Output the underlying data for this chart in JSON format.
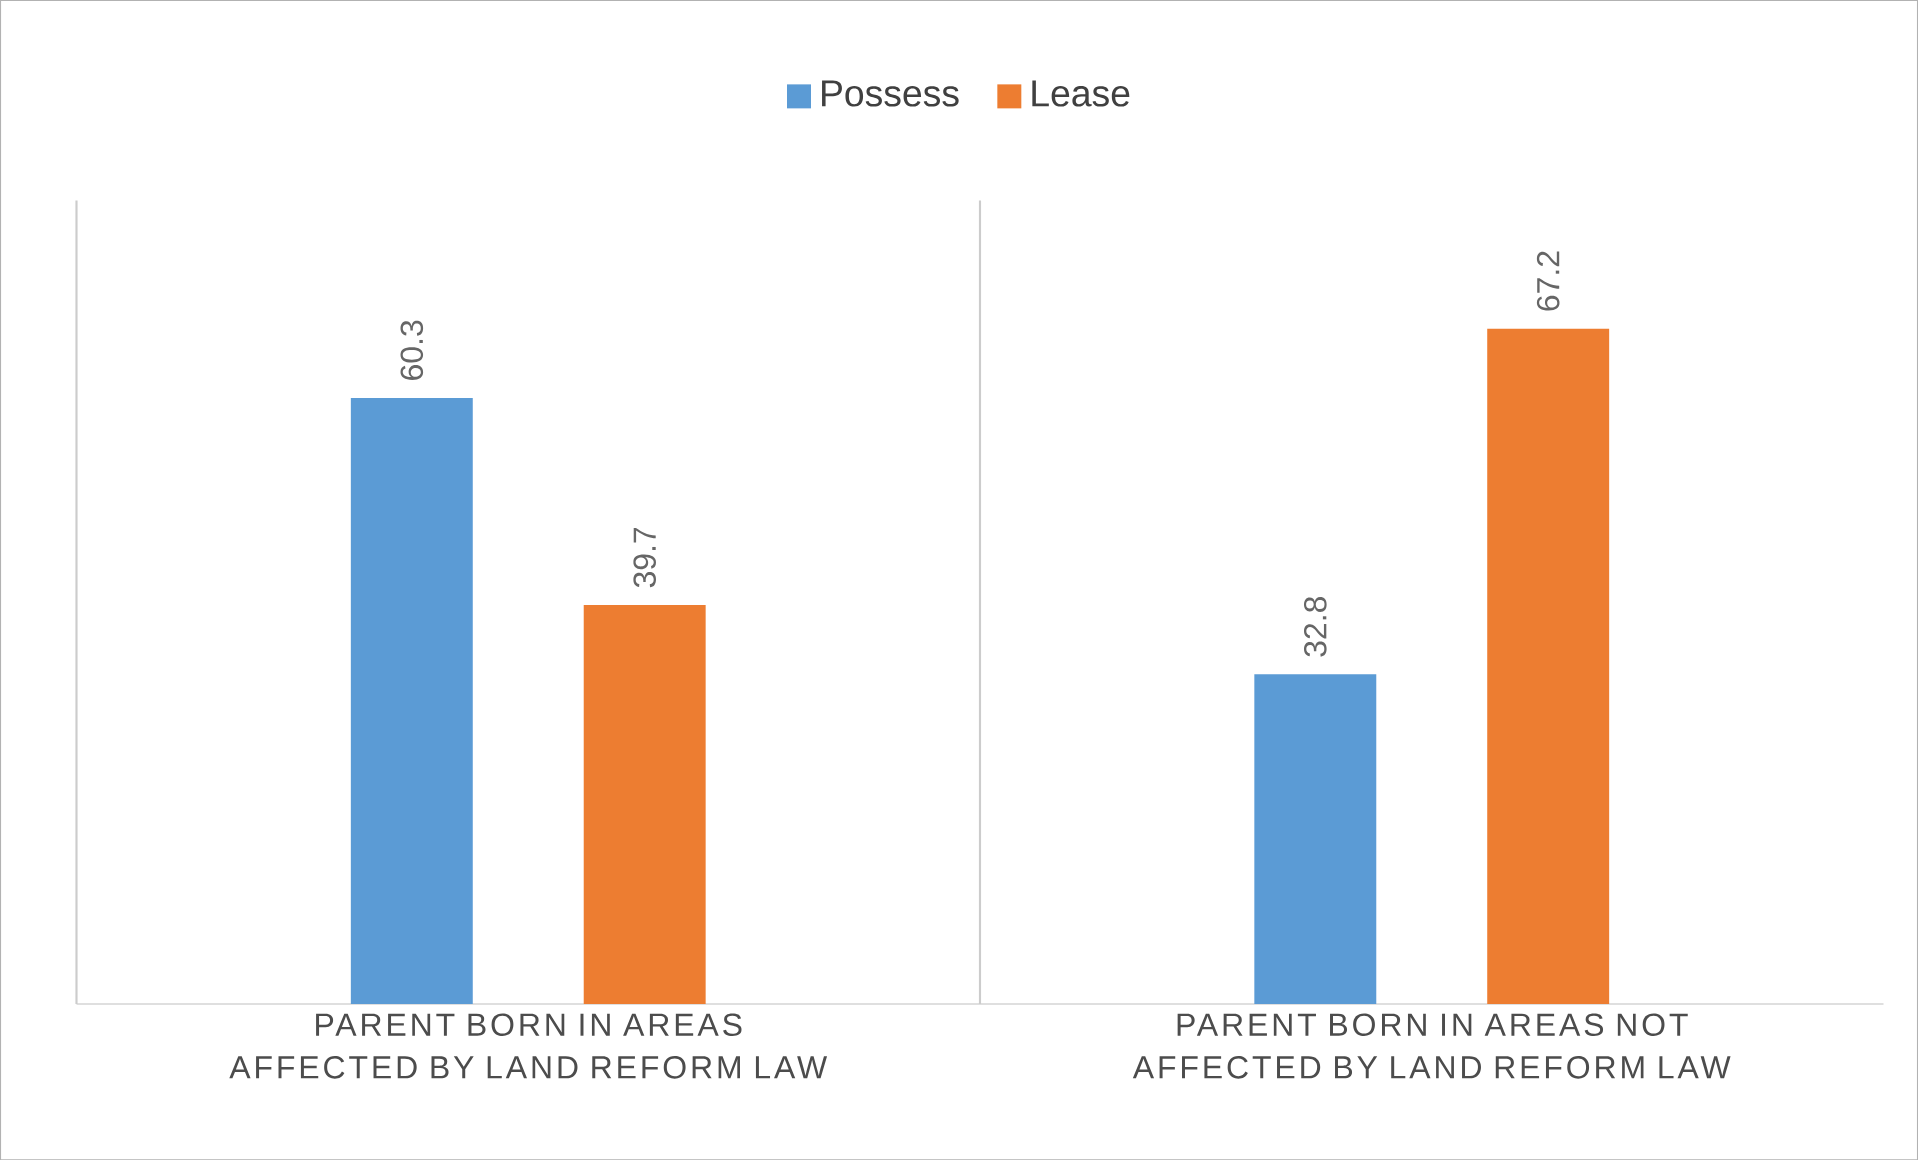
{
  "chart_data": {
    "type": "bar",
    "categories": [
      "PARENT BORN IN AREAS AFFECTED BY LAND REFORM LAW",
      "PARENT BORN IN AREAS NOT AFFECTED BY LAND REFORM LAW"
    ],
    "series": [
      {
        "name": "Possess",
        "color": "#5b9bd5",
        "values": [
          60.3,
          32.8
        ]
      },
      {
        "name": "Lease",
        "color": "#ed7d31",
        "values": [
          39.7,
          67.2
        ]
      }
    ],
    "data_labels": true,
    "grid": "x",
    "legend": "top"
  }
}
